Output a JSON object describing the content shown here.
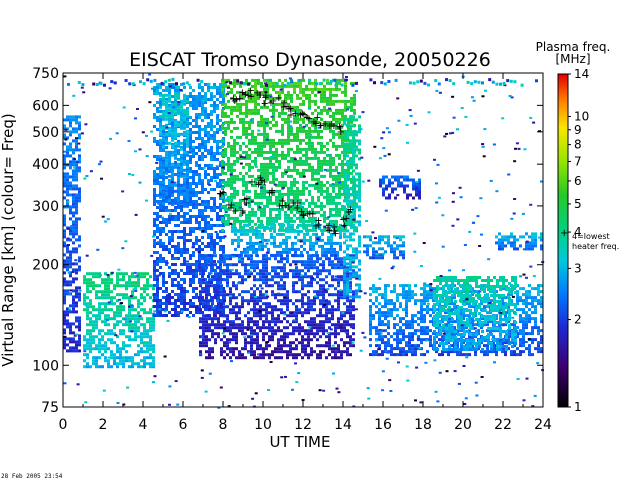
{
  "chart_data": {
    "type": "heatmap",
    "title": "EISCAT Tromso Dynasonde,  20050226",
    "xlabel": "UT TIME",
    "ylabel": "Virtual Range [km]   (colour= Freq)",
    "x_ticks": [
      "0",
      "2",
      "4",
      "6",
      "8",
      "10",
      "12",
      "14",
      "16",
      "18",
      "20",
      "22",
      "24"
    ],
    "xlim": [
      0,
      24
    ],
    "y_ticks": [
      "75",
      "100",
      "200",
      "300",
      "400",
      "500",
      "600",
      "750"
    ],
    "ylim": [
      75,
      750
    ],
    "y_scale": "log",
    "colorbar": {
      "title": "Plasma freq.",
      "unit": "[MHz]",
      "ticks": [
        "1",
        "2",
        "3",
        "4",
        "5",
        "6",
        "7",
        "8",
        "9",
        "10",
        "14"
      ],
      "range": [
        1,
        14
      ],
      "scale": "log",
      "marker_value": 4,
      "marker_label_1": "4=lowest",
      "marker_label_2": "heater freq."
    },
    "marker_symbol": "+",
    "regions": [
      {
        "t": [
          0.0,
          0.8
        ],
        "h": [
          110,
          560
        ],
        "f": 2.2
      },
      {
        "t": [
          1.0,
          4.6
        ],
        "h": [
          100,
          190
        ],
        "f": 3.6
      },
      {
        "t": [
          4.5,
          8.0
        ],
        "h": [
          140,
          700
        ],
        "f": 2.4
      },
      {
        "t": [
          4.8,
          6.3
        ],
        "h": [
          300,
          650
        ],
        "f": 2.9
      },
      {
        "t": [
          7.9,
          14.6
        ],
        "h": [
          255,
          720
        ],
        "f": 4.8
      },
      {
        "t": [
          8.4,
          13.8
        ],
        "h": [
          215,
          265
        ],
        "f": 2.9
      },
      {
        "t": [
          6.8,
          14.5
        ],
        "h": [
          105,
          215
        ],
        "f": 1.9
      },
      {
        "t": [
          14.0,
          14.9
        ],
        "h": [
          160,
          560
        ],
        "f": 3.4
      },
      {
        "t": [
          15.3,
          24.0
        ],
        "h": [
          108,
          175
        ],
        "f": 2.5
      },
      {
        "t": [
          18.5,
          22.6
        ],
        "h": [
          112,
          185
        ],
        "f": 3.3
      },
      {
        "t": [
          15.0,
          17.0
        ],
        "h": [
          210,
          245
        ],
        "f": 2.6
      },
      {
        "t": [
          21.6,
          24.0
        ],
        "h": [
          222,
          250
        ],
        "f": 2.6
      },
      {
        "t": [
          15.8,
          17.8
        ],
        "h": [
          315,
          370
        ],
        "f": 2.0
      }
    ],
    "lowest_heater_trace": [
      {
        "t": 8.0,
        "h": 330
      },
      {
        "t": 8.4,
        "h": 305
      },
      {
        "t": 8.8,
        "h": 295
      },
      {
        "t": 9.2,
        "h": 310
      },
      {
        "t": 9.6,
        "h": 350
      },
      {
        "t": 10.0,
        "h": 360
      },
      {
        "t": 10.4,
        "h": 330
      },
      {
        "t": 10.8,
        "h": 310
      },
      {
        "t": 11.2,
        "h": 300
      },
      {
        "t": 11.6,
        "h": 305
      },
      {
        "t": 12.0,
        "h": 290
      },
      {
        "t": 12.4,
        "h": 280
      },
      {
        "t": 12.8,
        "h": 270
      },
      {
        "t": 13.2,
        "h": 260
      },
      {
        "t": 13.6,
        "h": 255
      },
      {
        "t": 14.0,
        "h": 270
      },
      {
        "t": 14.4,
        "h": 290
      }
    ],
    "upper_trace": [
      {
        "t": 8.6,
        "h": 620
      },
      {
        "t": 9.0,
        "h": 650
      },
      {
        "t": 9.4,
        "h": 660
      },
      {
        "t": 9.8,
        "h": 640
      },
      {
        "t": 10.2,
        "h": 630
      },
      {
        "t": 10.6,
        "h": 620
      },
      {
        "t": 11.0,
        "h": 600
      },
      {
        "t": 11.4,
        "h": 580
      },
      {
        "t": 11.8,
        "h": 570
      },
      {
        "t": 12.2,
        "h": 560
      },
      {
        "t": 12.6,
        "h": 545
      },
      {
        "t": 13.0,
        "h": 530
      },
      {
        "t": 13.4,
        "h": 520
      },
      {
        "t": 13.8,
        "h": 510
      }
    ],
    "footer": "28 Feb 2005 23:54"
  }
}
